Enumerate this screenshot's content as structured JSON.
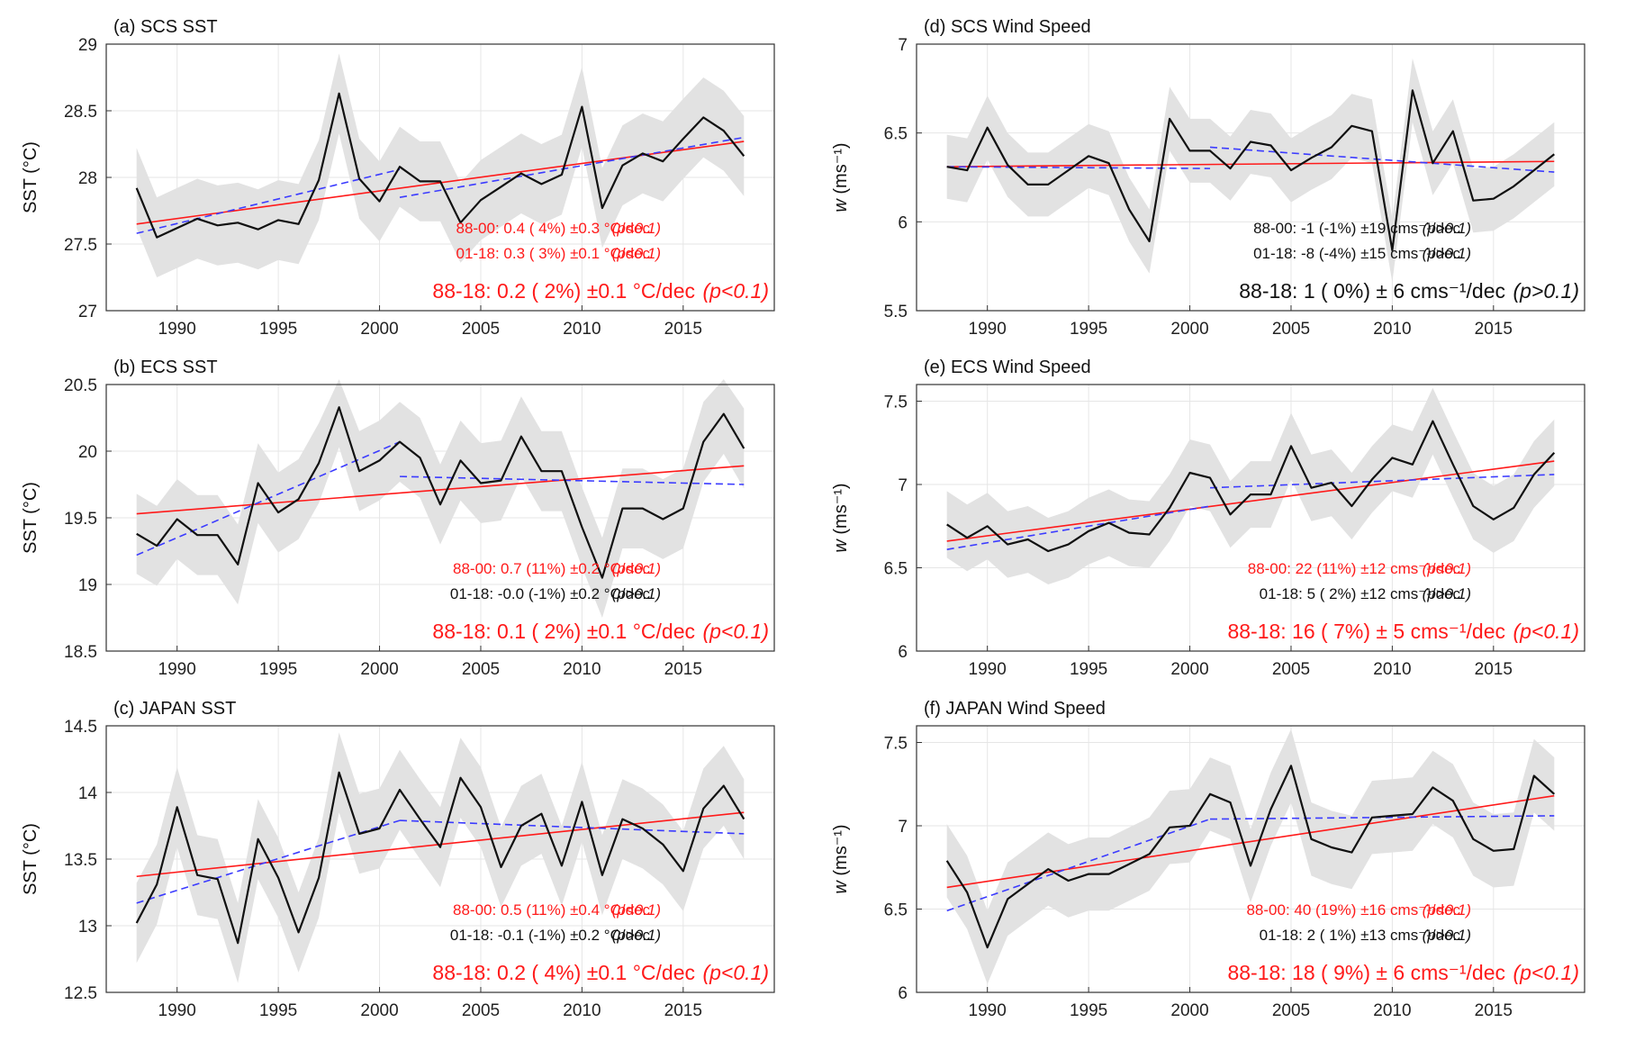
{
  "colors": {
    "black": "#111111",
    "red": "#ff1a1a",
    "blue": "#3b3bff",
    "band": "#e2e2e2",
    "grid": "#e6e6e6"
  },
  "chart_data": [
    {
      "type": "line",
      "title": "(a) SCS  SST",
      "ylabel": "SST (°C)",
      "ylabel_unit": "",
      "ylim": [
        27,
        29
      ],
      "yticks": [
        "27",
        "27.5",
        "28",
        "28.5",
        "29"
      ],
      "xlim": [
        1986.5,
        2019.5
      ],
      "xticks": [
        "1990",
        "1995",
        "2000",
        "2005",
        "2010",
        "2015"
      ],
      "grid": true,
      "x": [
        1988,
        1989,
        1990,
        1991,
        1992,
        1993,
        1994,
        1995,
        1996,
        1997,
        1998,
        1999,
        2000,
        2001,
        2002,
        2003,
        2004,
        2005,
        2006,
        2007,
        2008,
        2009,
        2010,
        2011,
        2012,
        2013,
        2014,
        2015,
        2016,
        2017,
        2018
      ],
      "series": [
        {
          "name": "annual mean",
          "values": [
            27.92,
            27.55,
            27.62,
            27.69,
            27.64,
            27.66,
            27.61,
            27.68,
            27.65,
            27.98,
            28.63,
            27.99,
            27.82,
            28.08,
            27.97,
            27.97,
            27.66,
            27.83,
            27.93,
            28.03,
            27.95,
            28.02,
            28.53,
            27.77,
            28.09,
            28.18,
            28.12,
            28.29,
            28.45,
            28.35,
            28.16
          ]
        }
      ],
      "spread": 0.3,
      "trend_full": {
        "x": [
          1988,
          2018
        ],
        "y": [
          27.65,
          28.27
        ]
      },
      "trend_p1": {
        "x": [
          1988,
          2001
        ],
        "y": [
          27.58,
          28.06
        ]
      },
      "trend_p2": {
        "x": [
          2001,
          2018
        ],
        "y": [
          27.85,
          28.3
        ]
      },
      "annotations": [
        {
          "main": "88-00: 0.4 ( 4%) ±0.3 °C/dec",
          "p": "(p<0.1)",
          "color": "#ff1a1a",
          "size": "small"
        },
        {
          "main": "01-18: 0.3 ( 3%) ±0.1 °C/dec",
          "p": "(p<0.1)",
          "color": "#ff1a1a",
          "size": "small"
        },
        {
          "main": "88-18: 0.2 ( 2%) ±0.1 °C/dec",
          "p": "(p<0.1)",
          "color": "#ff1a1a",
          "size": "big"
        }
      ]
    },
    {
      "type": "line",
      "title": "(b) ECS  SST",
      "ylabel": "SST (°C)",
      "ylabel_unit": "",
      "ylim": [
        18.5,
        20.5
      ],
      "yticks": [
        "18.5",
        "19",
        "19.5",
        "20",
        "20.5"
      ],
      "xlim": [
        1986.5,
        2019.5
      ],
      "xticks": [
        "1990",
        "1995",
        "2000",
        "2005",
        "2010",
        "2015"
      ],
      "grid": true,
      "x": [
        1988,
        1989,
        1990,
        1991,
        1992,
        1993,
        1994,
        1995,
        1996,
        1997,
        1998,
        1999,
        2000,
        2001,
        2002,
        2003,
        2004,
        2005,
        2006,
        2007,
        2008,
        2009,
        2010,
        2011,
        2012,
        2013,
        2014,
        2015,
        2016,
        2017,
        2018
      ],
      "series": [
        {
          "name": "annual mean",
          "values": [
            19.38,
            19.29,
            19.49,
            19.37,
            19.37,
            19.15,
            19.76,
            19.54,
            19.64,
            19.91,
            20.33,
            19.85,
            19.93,
            20.07,
            19.95,
            19.6,
            19.93,
            19.76,
            19.78,
            20.11,
            19.85,
            19.85,
            19.43,
            19.05,
            19.57,
            19.57,
            19.49,
            19.57,
            20.07,
            20.28,
            20.02
          ]
        }
      ],
      "spread": 0.3,
      "trend_full": {
        "x": [
          1988,
          2018
        ],
        "y": [
          19.53,
          19.89
        ]
      },
      "trend_p1": {
        "x": [
          1988,
          2001
        ],
        "y": [
          19.22,
          20.07
        ]
      },
      "trend_p2": {
        "x": [
          2001,
          2018
        ],
        "y": [
          19.81,
          19.75
        ]
      },
      "annotations": [
        {
          "main": "88-00: 0.7 (11%) ±0.2 °C/dec",
          "p": "(p<0.1)",
          "color": "#ff1a1a",
          "size": "small"
        },
        {
          "main": "01-18: -0.0 (-1%) ±0.2 °C/dec",
          "p": "(p>0.1)",
          "color": "#111111",
          "size": "small"
        },
        {
          "main": "88-18: 0.1 ( 2%) ±0.1 °C/dec",
          "p": "(p<0.1)",
          "color": "#ff1a1a",
          "size": "big"
        }
      ]
    },
    {
      "type": "line",
      "title": "(c) JAPAN  SST",
      "ylabel": "SST (°C)",
      "ylabel_unit": "",
      "ylim": [
        12.5,
        14.5
      ],
      "yticks": [
        "12.5",
        "13",
        "13.5",
        "14",
        "14.5"
      ],
      "xlim": [
        1986.5,
        2019.5
      ],
      "xticks": [
        "1990",
        "1995",
        "2000",
        "2005",
        "2010",
        "2015"
      ],
      "grid": true,
      "x": [
        1988,
        1989,
        1990,
        1991,
        1992,
        1993,
        1994,
        1995,
        1996,
        1997,
        1998,
        1999,
        2000,
        2001,
        2002,
        2003,
        2004,
        2005,
        2006,
        2007,
        2008,
        2009,
        2010,
        2011,
        2012,
        2013,
        2014,
        2015,
        2016,
        2017,
        2018
      ],
      "series": [
        {
          "name": "annual mean",
          "values": [
            13.02,
            13.31,
            13.89,
            13.38,
            13.35,
            12.87,
            13.65,
            13.36,
            12.95,
            13.36,
            14.15,
            13.69,
            13.73,
            14.02,
            13.8,
            13.59,
            14.11,
            13.89,
            13.44,
            13.75,
            13.84,
            13.45,
            13.93,
            13.38,
            13.8,
            13.73,
            13.61,
            13.41,
            13.88,
            14.05,
            13.8
          ]
        }
      ],
      "spread": 0.3,
      "trend_full": {
        "x": [
          1988,
          2018
        ],
        "y": [
          13.37,
          13.85
        ]
      },
      "trend_p1": {
        "x": [
          1988,
          2001
        ],
        "y": [
          13.17,
          13.79
        ]
      },
      "trend_p2": {
        "x": [
          2001,
          2018
        ],
        "y": [
          13.79,
          13.69
        ]
      },
      "annotations": [
        {
          "main": "88-00: 0.5 (11%) ±0.4 °C/dec",
          "p": "(p<0.1)",
          "color": "#ff1a1a",
          "size": "small"
        },
        {
          "main": "01-18: -0.1 (-1%) ±0.2 °C/dec",
          "p": "(p>0.1)",
          "color": "#111111",
          "size": "small"
        },
        {
          "main": "88-18: 0.2 ( 4%) ±0.1 °C/dec",
          "p": "(p<0.1)",
          "color": "#ff1a1a",
          "size": "big"
        }
      ]
    },
    {
      "type": "line",
      "title": "(d) SCS    Wind Speed",
      "ylabel": "w",
      "ylabel_unit": " (ms⁻¹)",
      "ylim": [
        5.5,
        7
      ],
      "yticks": [
        "5.5",
        "6",
        "6.5",
        "7"
      ],
      "xlim": [
        1986.5,
        2019.5
      ],
      "xticks": [
        "1990",
        "1995",
        "2000",
        "2005",
        "2010",
        "2015"
      ],
      "grid": true,
      "x": [
        1988,
        1989,
        1990,
        1991,
        1992,
        1993,
        1994,
        1995,
        1996,
        1997,
        1998,
        1999,
        2000,
        2001,
        2002,
        2003,
        2004,
        2005,
        2006,
        2007,
        2008,
        2009,
        2010,
        2011,
        2012,
        2013,
        2014,
        2015,
        2016,
        2017,
        2018
      ],
      "series": [
        {
          "name": "annual mean",
          "values": [
            6.31,
            6.29,
            6.53,
            6.32,
            6.21,
            6.21,
            6.29,
            6.37,
            6.33,
            6.07,
            5.89,
            6.58,
            6.4,
            6.4,
            6.3,
            6.45,
            6.43,
            6.29,
            6.36,
            6.42,
            6.54,
            6.51,
            5.84,
            6.74,
            6.33,
            6.51,
            6.12,
            6.13,
            6.2,
            6.29,
            6.38
          ]
        }
      ],
      "spread": 0.18,
      "trend_full": {
        "x": [
          1988,
          2018
        ],
        "y": [
          6.31,
          6.34
        ]
      },
      "trend_p1": {
        "x": [
          1988,
          2001
        ],
        "y": [
          6.31,
          6.3
        ]
      },
      "trend_p2": {
        "x": [
          2001,
          2018
        ],
        "y": [
          6.42,
          6.28
        ]
      },
      "annotations": [
        {
          "main": "88-00: -1 (-1%) ±19 cms⁻¹/dec",
          "p": "(p>0.1)",
          "color": "#111111",
          "size": "small"
        },
        {
          "main": "01-18: -8 (-4%) ±15 cms⁻¹/dec",
          "p": "(p>0.1)",
          "color": "#111111",
          "size": "small"
        },
        {
          "main": "88-18:  1 ( 0%) ± 6 cms⁻¹/dec",
          "p": "(p>0.1)",
          "color": "#111111",
          "size": "big"
        }
      ]
    },
    {
      "type": "line",
      "title": "(e) ECS    Wind Speed",
      "ylabel": "w",
      "ylabel_unit": " (ms⁻¹)",
      "ylim": [
        6,
        7.6
      ],
      "yticks": [
        "6",
        "6.5",
        "7",
        "7.5"
      ],
      "xlim": [
        1986.5,
        2019.5
      ],
      "xticks": [
        "1990",
        "1995",
        "2000",
        "2005",
        "2010",
        "2015"
      ],
      "grid": true,
      "x": [
        1988,
        1989,
        1990,
        1991,
        1992,
        1993,
        1994,
        1995,
        1996,
        1997,
        1998,
        1999,
        2000,
        2001,
        2002,
        2003,
        2004,
        2005,
        2006,
        2007,
        2008,
        2009,
        2010,
        2011,
        2012,
        2013,
        2014,
        2015,
        2016,
        2017,
        2018
      ],
      "series": [
        {
          "name": "annual mean",
          "values": [
            6.76,
            6.68,
            6.75,
            6.64,
            6.67,
            6.6,
            6.64,
            6.72,
            6.77,
            6.71,
            6.7,
            6.86,
            7.07,
            7.04,
            6.82,
            6.94,
            6.94,
            7.23,
            6.98,
            7.01,
            6.87,
            7.03,
            7.16,
            7.12,
            7.38,
            7.12,
            6.87,
            6.79,
            6.86,
            7.06,
            7.19
          ]
        }
      ],
      "spread": 0.2,
      "trend_full": {
        "x": [
          1988,
          2018
        ],
        "y": [
          6.66,
          7.14
        ]
      },
      "trend_p1": {
        "x": [
          1988,
          2001
        ],
        "y": [
          6.61,
          6.87
        ]
      },
      "trend_p2": {
        "x": [
          2001,
          2018
        ],
        "y": [
          6.98,
          7.06
        ]
      },
      "annotations": [
        {
          "main": "88-00: 22 (11%) ±12 cms⁻¹/dec",
          "p": "(p<0.1)",
          "color": "#ff1a1a",
          "size": "small"
        },
        {
          "main": "01-18:  5 ( 2%) ±12 cms⁻¹/dec",
          "p": "(p>0.1)",
          "color": "#111111",
          "size": "small"
        },
        {
          "main": "88-18: 16 ( 7%) ± 5 cms⁻¹/dec",
          "p": "(p<0.1)",
          "color": "#ff1a1a",
          "size": "big"
        }
      ]
    },
    {
      "type": "line",
      "title": "(f) JAPAN    Wind Speed",
      "ylabel": "w",
      "ylabel_unit": " (ms⁻¹)",
      "ylim": [
        6,
        7.6
      ],
      "yticks": [
        "6",
        "6.5",
        "7",
        "7.5"
      ],
      "xlim": [
        1986.5,
        2019.5
      ],
      "xticks": [
        "1990",
        "1995",
        "2000",
        "2005",
        "2010",
        "2015"
      ],
      "grid": true,
      "x": [
        1988,
        1989,
        1990,
        1991,
        1992,
        1993,
        1994,
        1995,
        1996,
        1997,
        1998,
        1999,
        2000,
        2001,
        2002,
        2003,
        2004,
        2005,
        2006,
        2007,
        2008,
        2009,
        2010,
        2011,
        2012,
        2013,
        2014,
        2015,
        2016,
        2017,
        2018
      ],
      "series": [
        {
          "name": "annual mean",
          "values": [
            6.79,
            6.6,
            6.27,
            6.56,
            6.65,
            6.74,
            6.67,
            6.71,
            6.71,
            6.77,
            6.83,
            6.99,
            7.0,
            7.19,
            7.14,
            6.76,
            7.1,
            7.36,
            6.92,
            6.87,
            6.84,
            7.05,
            7.06,
            7.07,
            7.23,
            7.15,
            6.92,
            6.85,
            6.86,
            7.3,
            7.19
          ]
        }
      ],
      "spread": 0.22,
      "trend_full": {
        "x": [
          1988,
          2018
        ],
        "y": [
          6.63,
          7.18
        ]
      },
      "trend_p1": {
        "x": [
          1988,
          2001
        ],
        "y": [
          6.49,
          7.04
        ]
      },
      "trend_p2": {
        "x": [
          2001,
          2018
        ],
        "y": [
          7.04,
          7.06
        ]
      },
      "annotations": [
        {
          "main": "88-00: 40 (19%) ±16 cms⁻¹/dec",
          "p": "(p<0.1)",
          "color": "#ff1a1a",
          "size": "small"
        },
        {
          "main": "01-18:  2 ( 1%) ±13 cms⁻¹/dec",
          "p": "(p>0.1)",
          "color": "#111111",
          "size": "small"
        },
        {
          "main": "88-18: 18 ( 9%) ± 6 cms⁻¹/dec",
          "p": "(p<0.1)",
          "color": "#ff1a1a",
          "size": "big"
        }
      ]
    }
  ]
}
